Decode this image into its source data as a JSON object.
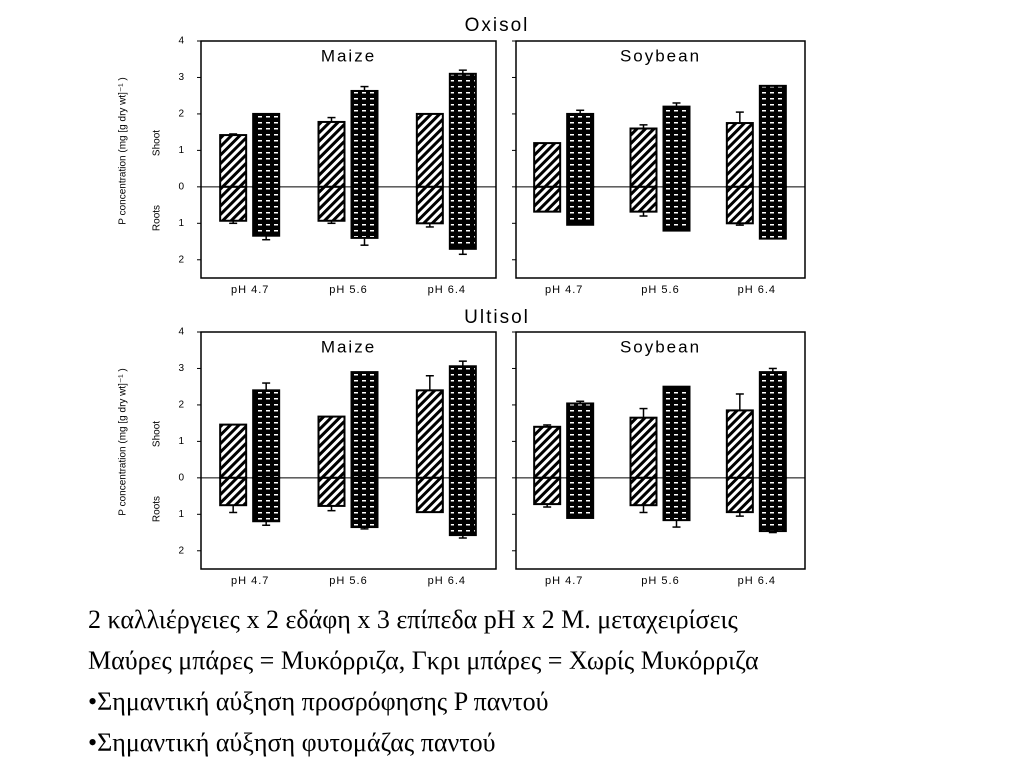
{
  "group_titles": [
    "Oxisol",
    "Ultisol"
  ],
  "text_lines": [
    "2 καλλιέργειες x 2 εδάφη x 3 επίπεδα pH x 2 Μ. μεταχειρίσεις",
    "Μαύρες μπάρες = Μυκόρριζα, Γκρι μπάρες = Χωρίς Μυκόρριζα",
    "•Σημαντική αύξηση προσρόφησης P παντού",
    "•Σημαντική αύξηση φυτομάζας παντού"
  ],
  "chart_data": [
    {
      "type": "bar",
      "title": "Maize",
      "ylabel": "P concentration (mg [g dry wt]⁻¹ )",
      "shoot_label": "Shoot",
      "root_label": "Roots",
      "categories": [
        "pH 4.7",
        "pH 5.6",
        "pH 6.4"
      ],
      "ylim": [
        -2.5,
        4
      ],
      "yticks": [
        {
          "value": -2,
          "label": "2"
        },
        {
          "value": -1,
          "label": "1"
        },
        0,
        1,
        2,
        3,
        4
      ],
      "series": [
        {
          "color": "#000000",
          "pattern": "hatch",
          "shoot": [
            1.42,
            1.78,
            2.0
          ],
          "shoot_error": [
            0.03,
            0.12,
            null
          ],
          "root": [
            -0.93,
            -0.93,
            -1.0
          ],
          "root_error": [
            0.07,
            0.07,
            0.1
          ]
        },
        {
          "color": "#000000",
          "pattern": "dots",
          "shoot": [
            2.0,
            2.63,
            3.1
          ],
          "shoot_error": [
            null,
            0.12,
            0.1
          ],
          "root": [
            -1.34,
            -1.4,
            -1.7
          ],
          "root_error": [
            0.11,
            0.2,
            0.15
          ]
        }
      ]
    },
    {
      "type": "bar",
      "title": "Soybean",
      "categories": [
        "pH 4.7",
        "pH 5.6",
        "pH 6.4"
      ],
      "ylim": [
        -2.5,
        4
      ],
      "ytick_marks": [
        -2,
        -1,
        0,
        1,
        2,
        3,
        4
      ],
      "series": [
        {
          "color": "#000000",
          "pattern": "hatch",
          "shoot": [
            1.2,
            1.6,
            1.75
          ],
          "shoot_error": [
            null,
            0.1,
            0.3
          ],
          "root": [
            -0.68,
            -0.68,
            -1.0
          ],
          "root_error": [
            null,
            0.12,
            0.05
          ]
        },
        {
          "color": "#000000",
          "pattern": "dots",
          "shoot": [
            2.0,
            2.2,
            2.77
          ],
          "shoot_error": [
            0.1,
            0.1,
            null
          ],
          "root": [
            -1.04,
            -1.2,
            -1.42
          ],
          "root_error": [
            null,
            null,
            null
          ]
        }
      ]
    },
    {
      "type": "bar",
      "title": "Maize",
      "ylabel": "P concentration (mg [g dry wt]⁻¹ )",
      "shoot_label": "Shoot",
      "root_label": "Roots",
      "categories": [
        "pH 4.7",
        "pH 5.6",
        "pH 6.4"
      ],
      "ylim": [
        -2.5,
        4
      ],
      "yticks": [
        {
          "value": -2,
          "label": "2"
        },
        {
          "value": -1,
          "label": "1"
        },
        0,
        1,
        2,
        3,
        4
      ],
      "series": [
        {
          "color": "#000000",
          "pattern": "hatch",
          "shoot": [
            1.46,
            1.68,
            2.4
          ],
          "shoot_error": [
            null,
            null,
            0.4
          ],
          "root": [
            -0.75,
            -0.77,
            -0.94
          ],
          "root_error": [
            0.2,
            0.13,
            null
          ]
        },
        {
          "color": "#000000",
          "pattern": "dots",
          "shoot": [
            2.4,
            2.9,
            3.06
          ],
          "shoot_error": [
            0.2,
            null,
            0.14
          ],
          "root": [
            -1.19,
            -1.35,
            -1.57
          ],
          "root_error": [
            0.11,
            0.05,
            0.08
          ]
        }
      ]
    },
    {
      "type": "bar",
      "title": "Soybean",
      "categories": [
        "pH 4.7",
        "pH 5.6",
        "pH 6.4"
      ],
      "ylim": [
        -2.5,
        4
      ],
      "ytick_marks": [
        -2,
        -1,
        0,
        1,
        2,
        3,
        4
      ],
      "series": [
        {
          "color": "#000000",
          "pattern": "hatch",
          "shoot": [
            1.4,
            1.65,
            1.85
          ],
          "shoot_error": [
            0.05,
            0.25,
            0.45
          ],
          "root": [
            -0.72,
            -0.75,
            -0.94
          ],
          "root_error": [
            0.08,
            0.2,
            0.11
          ]
        },
        {
          "color": "#000000",
          "pattern": "dots",
          "shoot": [
            2.04,
            2.5,
            2.9
          ],
          "shoot_error": [
            0.06,
            null,
            0.1
          ],
          "root": [
            -1.1,
            -1.16,
            -1.46
          ],
          "root_error": [
            null,
            0.19,
            0.04
          ]
        }
      ]
    }
  ]
}
